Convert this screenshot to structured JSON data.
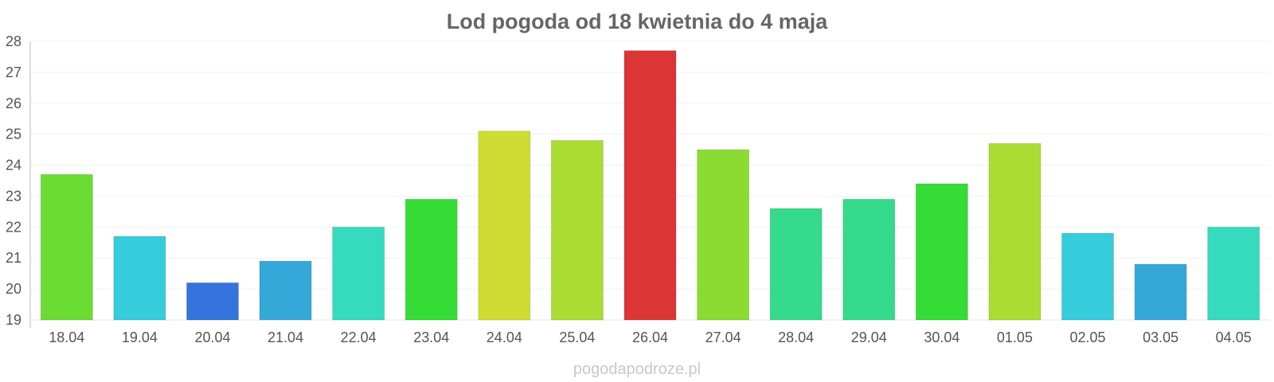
{
  "chart_data": {
    "type": "bar",
    "title": "Lod pogoda od 18 kwietnia do 4 maja",
    "xlabel": "",
    "ylabel": "",
    "categories": [
      "18.04",
      "19.04",
      "20.04",
      "21.04",
      "22.04",
      "23.04",
      "24.04",
      "25.04",
      "26.04",
      "27.04",
      "28.04",
      "29.04",
      "30.04",
      "01.05",
      "02.05",
      "03.05",
      "04.05"
    ],
    "values": [
      23.7,
      21.7,
      20.2,
      20.9,
      22.0,
      22.9,
      25.1,
      24.8,
      27.7,
      24.5,
      22.6,
      22.9,
      23.4,
      24.7,
      21.8,
      20.8,
      22.0
    ],
    "colors": [
      "#6bdc33",
      "#35ccdb",
      "#3474dc",
      "#35a8da",
      "#35dbbc",
      "#35dc35",
      "#cedc33",
      "#abdc33",
      "#dc3535",
      "#8adc33",
      "#35db8a",
      "#35db8a",
      "#35dc35",
      "#abdc33",
      "#35ccdb",
      "#35a8da",
      "#35dbbc"
    ],
    "ylim": [
      19,
      28
    ],
    "yticks": [
      19,
      20,
      21,
      22,
      23,
      24,
      25,
      26,
      27,
      28
    ],
    "grid": true,
    "legend": "none"
  },
  "watermark": "pogodapodroze.pl"
}
